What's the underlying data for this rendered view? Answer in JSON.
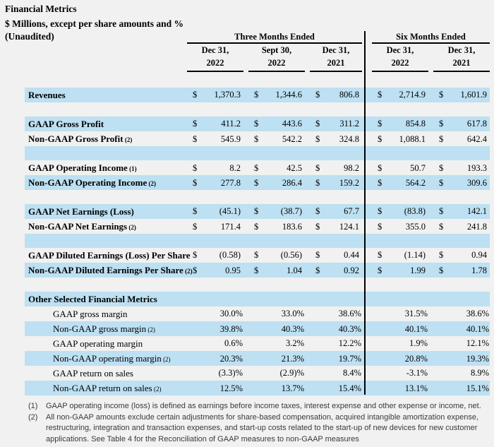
{
  "page": {
    "title": "Financial Metrics",
    "subtitle": "$ Millions, except per share amounts and %",
    "unaudited_label": "(Unaudited)"
  },
  "table": {
    "currency_symbol": "$",
    "column_groups": [
      {
        "label": "Three Months Ended"
      },
      {
        "label": "Six Months Ended"
      }
    ],
    "columns": [
      {
        "month": "Dec 31,",
        "year": "2022",
        "group": "Three Months Ended"
      },
      {
        "month": "Sept 30,",
        "year": "2022",
        "group": "Three Months Ended"
      },
      {
        "month": "Dec 31,",
        "year": "2021",
        "group": "Three Months Ended"
      },
      {
        "month": "Dec 31,",
        "year": "2022",
        "group": "Six Months Ended"
      },
      {
        "month": "Dec 31,",
        "year": "2021",
        "group": "Six Months Ended"
      }
    ],
    "rows": [
      {
        "type": "data",
        "shade": "blue",
        "bold": true,
        "label": "Revenues",
        "sub": "",
        "dollar": true,
        "values": [
          "1,370.3",
          "1,344.6",
          "806.8",
          "2,714.9",
          "1,601.9"
        ]
      },
      {
        "type": "spacer",
        "shade": "plain"
      },
      {
        "type": "data",
        "shade": "blue",
        "bold": true,
        "label": "GAAP Gross Profit",
        "sub": "",
        "dollar": true,
        "values": [
          "411.2",
          "443.6",
          "311.2",
          "854.8",
          "617.8"
        ]
      },
      {
        "type": "data",
        "shade": "plain",
        "bold": true,
        "label": "Non-GAAP Gross Profit",
        "sub": "(2)",
        "dollar": true,
        "values": [
          "545.9",
          "542.2",
          "324.8",
          "1,088.1",
          "642.4"
        ]
      },
      {
        "type": "spacer",
        "shade": "blue"
      },
      {
        "type": "data",
        "shade": "plain",
        "bold": true,
        "label": "GAAP Operating Income",
        "sub": "(1)",
        "dollar": true,
        "values": [
          "8.2",
          "42.5",
          "98.2",
          "50.7",
          "193.3"
        ]
      },
      {
        "type": "data",
        "shade": "blue",
        "bold": true,
        "label": "Non-GAAP Operating Income",
        "sub": "(2)",
        "dollar": true,
        "values": [
          "277.8",
          "286.4",
          "159.2",
          "564.2",
          "309.6"
        ]
      },
      {
        "type": "spacer",
        "shade": "plain"
      },
      {
        "type": "data",
        "shade": "blue",
        "bold": true,
        "label": "GAAP Net Earnings (Loss)",
        "sub": "",
        "dollar": true,
        "values": [
          "(45.1)",
          "(38.7)",
          "67.7",
          "(83.8)",
          "142.1"
        ]
      },
      {
        "type": "data",
        "shade": "plain",
        "bold": true,
        "label": "Non-GAAP Net Earnings",
        "sub": "(2)",
        "dollar": true,
        "values": [
          "171.4",
          "183.6",
          "124.1",
          "355.0",
          "241.8"
        ]
      },
      {
        "type": "spacer",
        "shade": "blue"
      },
      {
        "type": "data",
        "shade": "plain",
        "bold": true,
        "label": "GAAP Diluted Earnings (Loss) Per Share",
        "sub": "",
        "dollar": true,
        "values": [
          "(0.58)",
          "(0.56)",
          "0.44",
          "(1.14)",
          "0.94"
        ]
      },
      {
        "type": "data",
        "shade": "blue",
        "bold": true,
        "label": "Non-GAAP Diluted Earnings Per Share",
        "sub": "(2)",
        "dollar": true,
        "values": [
          "0.95",
          "1.04",
          "0.92",
          "1.99",
          "1.78"
        ]
      },
      {
        "type": "spacer",
        "shade": "plain"
      },
      {
        "type": "section",
        "shade": "blue",
        "bold": true,
        "label": "Other Selected Financial Metrics",
        "sub": ""
      },
      {
        "type": "data",
        "shade": "plain",
        "bold": false,
        "indent": true,
        "label": "GAAP gross margin",
        "sub": "",
        "dollar": false,
        "values": [
          "30.0%",
          "33.0%",
          "38.6%",
          "31.5%",
          "38.6%"
        ]
      },
      {
        "type": "data",
        "shade": "blue",
        "bold": false,
        "indent": true,
        "label": "Non-GAAP gross margin",
        "sub": "(2)",
        "dollar": false,
        "values": [
          "39.8%",
          "40.3%",
          "40.3%",
          "40.1%",
          "40.1%"
        ]
      },
      {
        "type": "data",
        "shade": "plain",
        "bold": false,
        "indent": true,
        "label": "GAAP operating margin",
        "sub": "",
        "dollar": false,
        "values": [
          "0.6%",
          "3.2%",
          "12.2%",
          "1.9%",
          "12.1%"
        ]
      },
      {
        "type": "data",
        "shade": "blue",
        "bold": false,
        "indent": true,
        "label": "Non-GAAP operating margin",
        "sub": "(2)",
        "dollar": false,
        "values": [
          "20.3%",
          "21.3%",
          "19.7%",
          "20.8%",
          "19.3%"
        ]
      },
      {
        "type": "data",
        "shade": "plain",
        "bold": false,
        "indent": true,
        "label": "GAAP return on sales",
        "sub": "",
        "dollar": false,
        "values": [
          "(3.3)%",
          "(2.9)%",
          "8.4%",
          "-3.1%",
          "8.9%"
        ]
      },
      {
        "type": "data",
        "shade": "blue",
        "bold": false,
        "indent": true,
        "label": "Non-GAAP return on sales",
        "sub": "(2)",
        "dollar": false,
        "values": [
          "12.5%",
          "13.7%",
          "15.4%",
          "13.1%",
          "15.1%"
        ]
      }
    ]
  },
  "footnotes": [
    {
      "num": "(1)",
      "text": "GAAP operating income (loss) is defined as earnings before income taxes, interest expense and other expense or income, net."
    },
    {
      "num": "(2)",
      "text": "All non-GAAP amounts exclude certain adjustments for share-based compensation, acquired intangible amortization expense, restructuring, integration and transaction expenses, and start-up costs related to the start-up of new devices for new customer applications. See Table 4 for the Reconciliation of GAAP measures to non-GAAP measures"
    }
  ],
  "colors": {
    "stripe_blue": "#BDE0F2",
    "page_background": "#F1F1F1",
    "divider_black": "#000000"
  }
}
